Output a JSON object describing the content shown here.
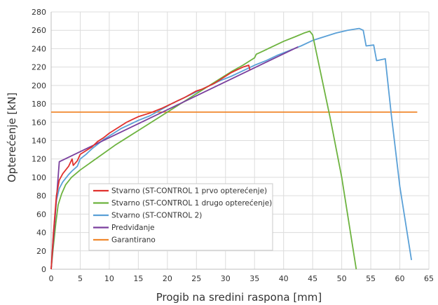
{
  "chart_data": {
    "type": "line",
    "xlabel": "Progib na sredini raspona [mm]",
    "ylabel": "Opterećenje [kN]",
    "xlim": [
      0,
      65
    ],
    "ylim": [
      0,
      280
    ],
    "xticks": [
      0,
      5,
      10,
      15,
      20,
      25,
      30,
      35,
      40,
      45,
      50,
      55,
      60,
      65
    ],
    "yticks": [
      0,
      20,
      40,
      60,
      80,
      100,
      120,
      140,
      160,
      180,
      200,
      220,
      240,
      260,
      280
    ],
    "grid": true,
    "legend_position": "lower-left",
    "series": [
      {
        "name": "Stvarno (ST-CONTROL 1 prvo opterećenje)",
        "color": "#e0312d",
        "points": [
          [
            0,
            0
          ],
          [
            0.4,
            40
          ],
          [
            0.9,
            80
          ],
          [
            1.4,
            97
          ],
          [
            2,
            104
          ],
          [
            3,
            112
          ],
          [
            3.6,
            120
          ],
          [
            3.8,
            113
          ],
          [
            4.5,
            118
          ],
          [
            5,
            125
          ],
          [
            6,
            129
          ],
          [
            7,
            133
          ],
          [
            8,
            139
          ],
          [
            9,
            143
          ],
          [
            10,
            148
          ],
          [
            11,
            152
          ],
          [
            12,
            156
          ],
          [
            13,
            160
          ],
          [
            14,
            163
          ],
          [
            15,
            166
          ],
          [
            17,
            170
          ],
          [
            19,
            175
          ],
          [
            21,
            181
          ],
          [
            23,
            187
          ],
          [
            25,
            194
          ],
          [
            26,
            196
          ],
          [
            27,
            199
          ],
          [
            28,
            202
          ],
          [
            29,
            206
          ],
          [
            30,
            210
          ],
          [
            31,
            214
          ],
          [
            32,
            217
          ],
          [
            33,
            220
          ],
          [
            34,
            222
          ],
          [
            34.2,
            217
          ]
        ]
      },
      {
        "name": "Stvarno (ST-CONTROL 1 drugo opterećenje)",
        "color": "#6db33f",
        "points": [
          [
            0,
            0
          ],
          [
            0.3,
            20
          ],
          [
            0.8,
            50
          ],
          [
            1.2,
            70
          ],
          [
            1.8,
            82
          ],
          [
            2.5,
            92
          ],
          [
            3.5,
            100
          ],
          [
            5,
            108
          ],
          [
            7,
            117
          ],
          [
            9,
            126
          ],
          [
            11,
            135
          ],
          [
            13,
            143
          ],
          [
            15,
            151
          ],
          [
            17,
            159
          ],
          [
            19,
            167
          ],
          [
            21,
            175
          ],
          [
            23,
            183
          ],
          [
            25,
            191
          ],
          [
            27,
            199
          ],
          [
            29,
            207
          ],
          [
            31,
            215
          ],
          [
            33,
            222
          ],
          [
            35,
            230
          ],
          [
            35.3,
            234
          ],
          [
            36,
            236
          ],
          [
            38,
            242
          ],
          [
            40,
            248
          ],
          [
            42,
            253
          ],
          [
            43.5,
            257
          ],
          [
            44.5,
            259
          ],
          [
            45,
            255
          ],
          [
            47,
            195
          ],
          [
            48,
            165
          ],
          [
            50,
            100
          ],
          [
            51.5,
            40
          ],
          [
            52.5,
            0
          ]
        ]
      },
      {
        "name": "Stvarno (ST-CONTROL 2)",
        "color": "#5aa0d7",
        "points": [
          [
            0,
            0
          ],
          [
            0.4,
            40
          ],
          [
            0.9,
            75
          ],
          [
            1.4,
            88
          ],
          [
            2,
            95
          ],
          [
            3,
            103
          ],
          [
            3.6,
            107
          ],
          [
            4.5,
            112
          ],
          [
            5,
            120
          ],
          [
            6,
            125
          ],
          [
            7,
            131
          ],
          [
            8,
            136
          ],
          [
            9,
            141
          ],
          [
            10,
            145
          ],
          [
            11,
            149
          ],
          [
            12,
            153
          ],
          [
            13,
            156
          ],
          [
            15,
            162
          ],
          [
            17,
            167
          ],
          [
            19,
            174
          ],
          [
            21,
            181
          ],
          [
            23,
            187
          ],
          [
            25,
            193
          ],
          [
            27,
            199
          ],
          [
            29,
            205
          ],
          [
            31,
            210
          ],
          [
            33,
            216
          ],
          [
            35,
            222
          ],
          [
            37,
            227
          ],
          [
            39,
            233
          ],
          [
            41,
            238
          ],
          [
            43,
            243
          ],
          [
            45,
            249
          ],
          [
            47,
            253
          ],
          [
            49,
            257
          ],
          [
            51,
            260
          ],
          [
            53,
            262
          ],
          [
            53.7,
            260
          ],
          [
            54.2,
            243
          ],
          [
            55.5,
            244
          ],
          [
            56,
            227
          ],
          [
            57.5,
            229
          ],
          [
            58.5,
            170
          ],
          [
            60,
            90
          ],
          [
            62,
            10
          ]
        ]
      },
      {
        "name": "Predviđanje",
        "color": "#7a3f9d",
        "points": [
          [
            0,
            0
          ],
          [
            1.4,
            117
          ],
          [
            42.5,
            242
          ]
        ]
      },
      {
        "name": "Garantirano",
        "color": "#f0882e",
        "points": [
          [
            0,
            171
          ],
          [
            63,
            171
          ]
        ]
      }
    ]
  }
}
